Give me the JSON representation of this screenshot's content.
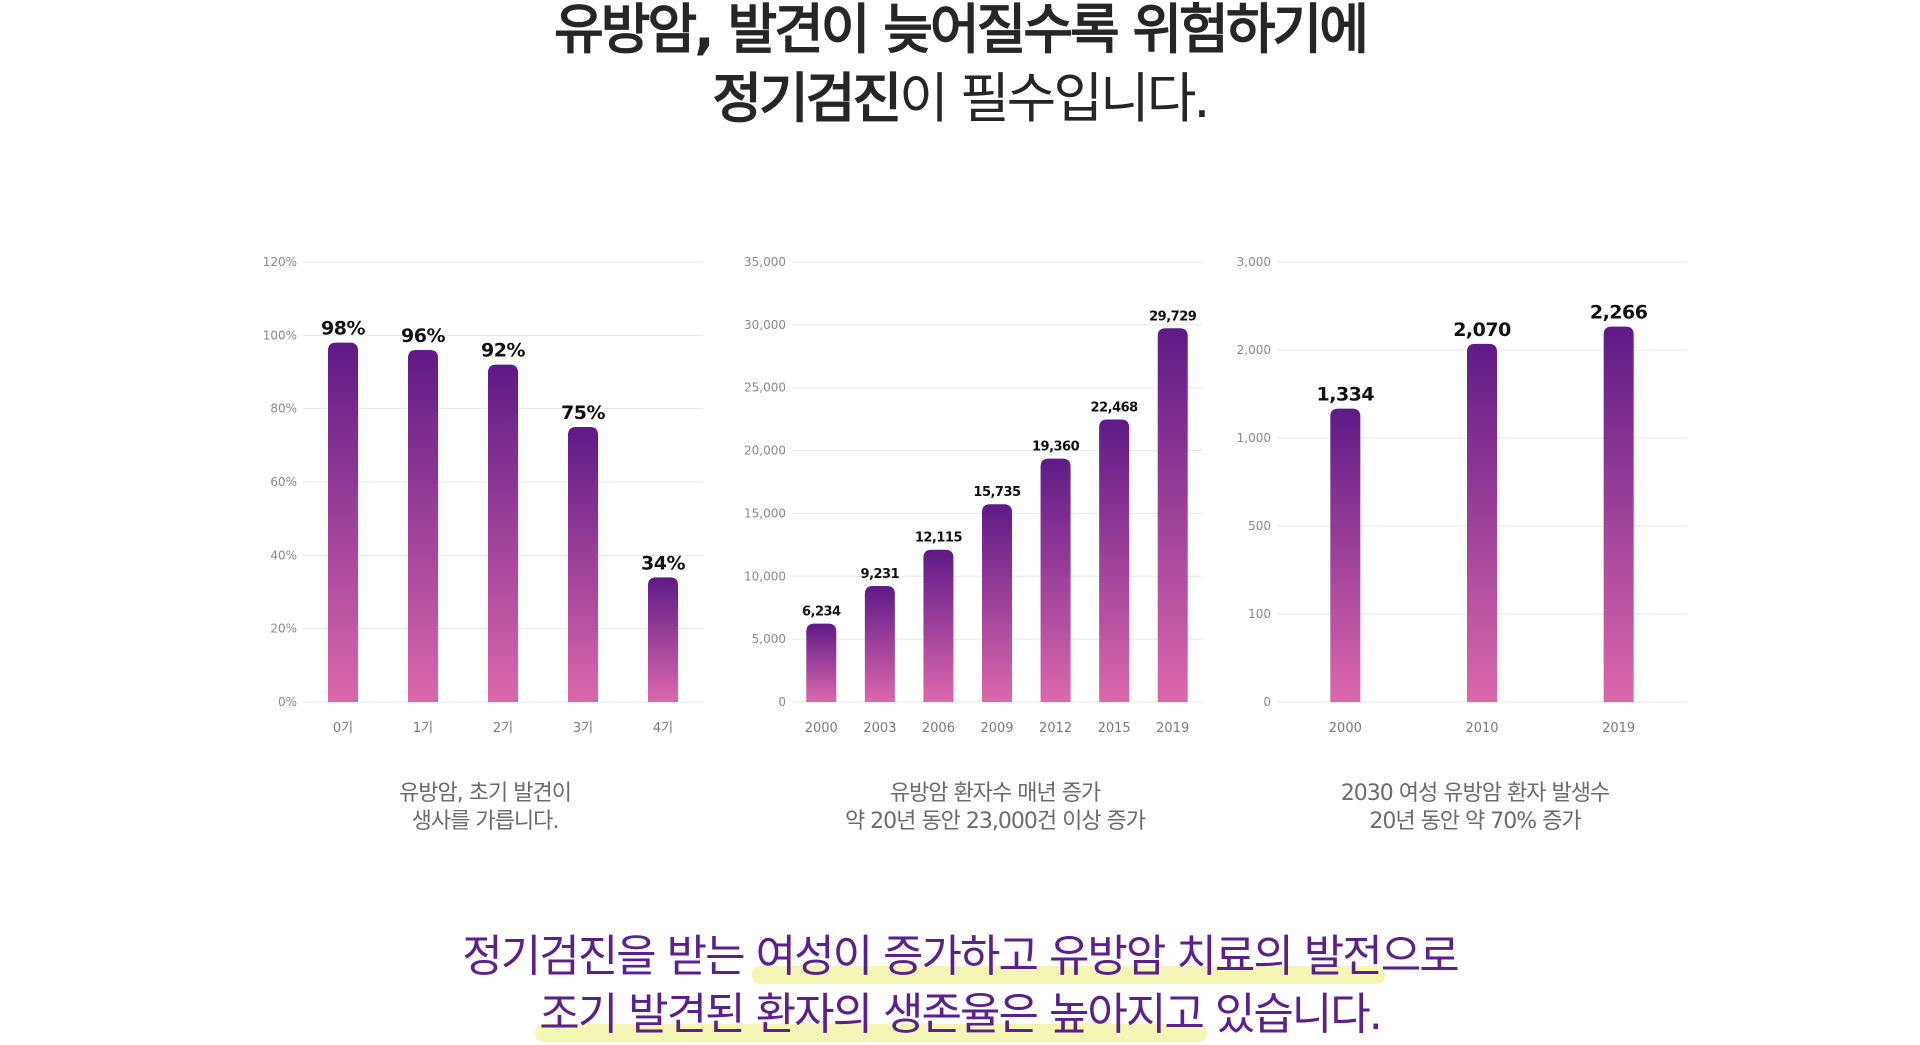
{
  "headline": {
    "line1": "유방암, 발견이 늦어질수록 위험하기에",
    "line2_bold": "정기검진",
    "line2_rest": "이 필수입니다."
  },
  "colors": {
    "bar_top": "#5f1a87",
    "bar_bottom": "#dc68ac",
    "grid": "#e6e6e6",
    "accent_text": "#5b1f8e",
    "highlight": "#f3f6b4"
  },
  "chart_data": [
    {
      "type": "bar",
      "categories": [
        "0기",
        "1기",
        "2기",
        "3기",
        "4기"
      ],
      "values": [
        98,
        96,
        92,
        75,
        34
      ],
      "value_labels": [
        "98%",
        "96%",
        "92%",
        "75%",
        "34%"
      ],
      "y_ticks": [
        "0%",
        "20%",
        "40%",
        "60%",
        "80%",
        "100%",
        "120%"
      ],
      "ylim": [
        0,
        120
      ],
      "grid": true,
      "caption": [
        "유방암, 초기 발견이",
        "생사를 가릅니다."
      ]
    },
    {
      "type": "bar",
      "categories": [
        "2000",
        "2003",
        "2006",
        "2009",
        "2012",
        "2015",
        "2019"
      ],
      "values": [
        6234,
        9231,
        12115,
        15735,
        19360,
        22468,
        29729
      ],
      "value_labels": [
        "6,234",
        "9,231",
        "12,115",
        "15,735",
        "19,360",
        "22,468",
        "29,729"
      ],
      "y_ticks": [
        "0",
        "5,000",
        "10,000",
        "15,000",
        "20,000",
        "25,000",
        "30,000",
        "35,000"
      ],
      "ylim": [
        0,
        35000
      ],
      "grid": true,
      "caption": [
        "유방암 환자수 매년 증가",
        "약 20년 동안 23,000건 이상 증가"
      ]
    },
    {
      "type": "bar",
      "categories": [
        "2000",
        "2010",
        "2019"
      ],
      "values": [
        1334,
        2070,
        2266
      ],
      "value_labels": [
        "1,334",
        "2,070",
        "2,266"
      ],
      "y_ticks": [
        "0",
        "100",
        "500",
        "1,000",
        "2,000",
        "3,000"
      ],
      "ylim": [
        0,
        3000
      ],
      "grid": true,
      "caption": [
        "2030 여성 유방암 환자 발생수",
        "20년 동안 약 70% 증가"
      ]
    }
  ],
  "bottom": {
    "line1": [
      "정기검진을 받는 ",
      "여성이 증가하고 유방암 치료의 발전",
      "으로"
    ],
    "line2": [
      "조기 발견된 환자의 생존율은 높아지고",
      " 있습니다."
    ]
  }
}
